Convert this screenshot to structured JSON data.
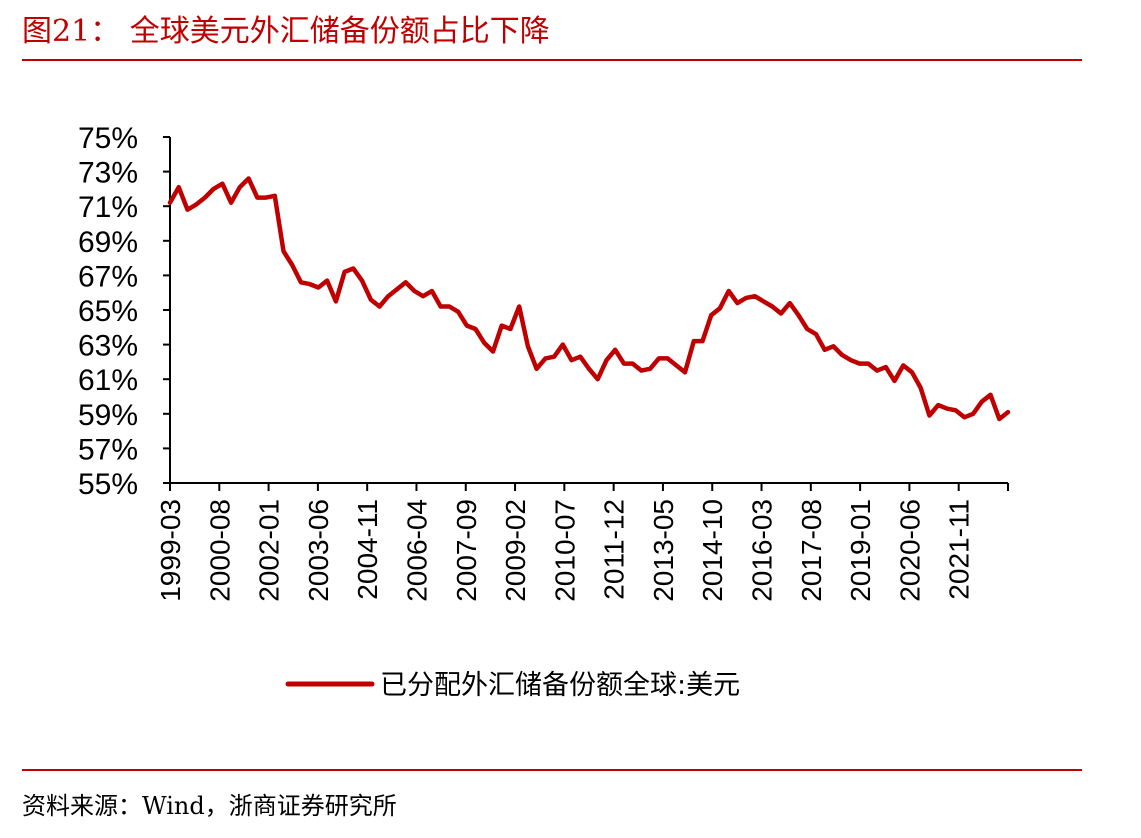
{
  "header": {
    "title": "图21：  全球美元外汇储备份额占比下降",
    "accent_color": "#c00000"
  },
  "footer": {
    "source": "资料来源：Wind，浙商证券研究所"
  },
  "chart_data": {
    "type": "line",
    "title": "",
    "xlabel": "",
    "ylabel": "",
    "ylim": [
      55,
      75
    ],
    "yticks": [
      "55%",
      "57%",
      "59%",
      "61%",
      "63%",
      "65%",
      "67%",
      "69%",
      "71%",
      "73%",
      "75%"
    ],
    "xticks": [
      "1999-03",
      "2000-08",
      "2002-01",
      "2003-06",
      "2004-11",
      "2006-04",
      "2007-09",
      "2009-02",
      "2010-07",
      "2011-12",
      "2013-05",
      "2014-10",
      "2016-03",
      "2017-08",
      "2019-01",
      "2020-06",
      "2021-11"
    ],
    "x_interval": "quarterly",
    "legend": "bottom",
    "grid": false,
    "series": [
      {
        "name": "已分配外汇储备份额全球:美元",
        "color": "#c00000",
        "values": [
          71.2,
          72.1,
          70.8,
          71.1,
          71.5,
          72.0,
          72.3,
          71.2,
          72.1,
          72.6,
          71.5,
          71.5,
          71.6,
          68.4,
          67.6,
          66.6,
          66.5,
          66.3,
          66.7,
          65.5,
          67.2,
          67.4,
          66.7,
          65.6,
          65.2,
          65.8,
          66.2,
          66.6,
          66.1,
          65.8,
          66.1,
          65.2,
          65.2,
          64.9,
          64.1,
          63.9,
          63.1,
          62.6,
          64.1,
          63.9,
          65.2,
          62.9,
          61.6,
          62.2,
          62.3,
          63.0,
          62.1,
          62.3,
          61.6,
          61.0,
          62.1,
          62.7,
          61.9,
          61.9,
          61.5,
          61.6,
          62.2,
          62.2,
          61.8,
          61.4,
          63.2,
          63.2,
          64.7,
          65.1,
          66.1,
          65.4,
          65.7,
          65.8,
          65.5,
          65.2,
          64.8,
          65.4,
          64.7,
          63.9,
          63.6,
          62.7,
          62.9,
          62.4,
          62.1,
          61.9,
          61.9,
          61.5,
          61.7,
          60.9,
          61.8,
          61.4,
          60.5,
          58.9,
          59.5,
          59.3,
          59.2,
          58.8,
          59.0,
          59.7,
          60.1,
          58.7,
          59.1
        ]
      }
    ]
  }
}
